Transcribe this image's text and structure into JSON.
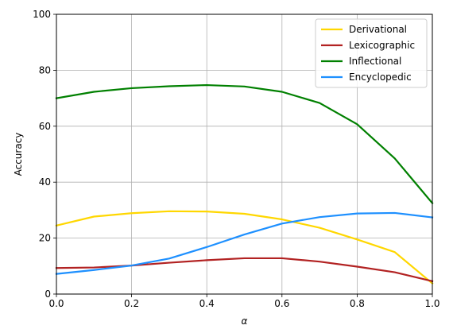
{
  "chart_data": {
    "type": "line",
    "title": "",
    "xlabel": "α",
    "ylabel": "Accuracy",
    "xlim": [
      0.0,
      1.0
    ],
    "ylim": [
      0,
      100
    ],
    "x_ticks": [
      "0.0",
      "0.2",
      "0.4",
      "0.6",
      "0.8",
      "1.0"
    ],
    "y_ticks": [
      "0",
      "20",
      "40",
      "60",
      "80",
      "100"
    ],
    "grid": true,
    "legend_position": "top-right",
    "x": [
      0.0,
      0.1,
      0.2,
      0.3,
      0.4,
      0.5,
      0.6,
      0.7,
      0.8,
      0.9,
      1.0
    ],
    "series": [
      {
        "name": "Derivational",
        "color": "#FFD700",
        "values": [
          24.5,
          27.7,
          28.9,
          29.6,
          29.5,
          28.7,
          26.7,
          23.7,
          19.5,
          15.0,
          3.8
        ]
      },
      {
        "name": "Lexicographic",
        "color": "#B22222",
        "values": [
          9.3,
          9.5,
          10.2,
          11.2,
          12.1,
          12.8,
          12.8,
          11.6,
          9.8,
          7.8,
          4.6
        ]
      },
      {
        "name": "Inflectional",
        "color": "#008000",
        "values": [
          70.0,
          72.3,
          73.6,
          74.3,
          74.7,
          74.2,
          72.3,
          68.3,
          60.7,
          48.5,
          32.5
        ]
      },
      {
        "name": "Encyclopedic",
        "color": "#1E90FF",
        "values": [
          7.2,
          8.6,
          10.2,
          12.7,
          16.8,
          21.3,
          25.2,
          27.5,
          28.8,
          29.0,
          27.4
        ]
      }
    ]
  }
}
